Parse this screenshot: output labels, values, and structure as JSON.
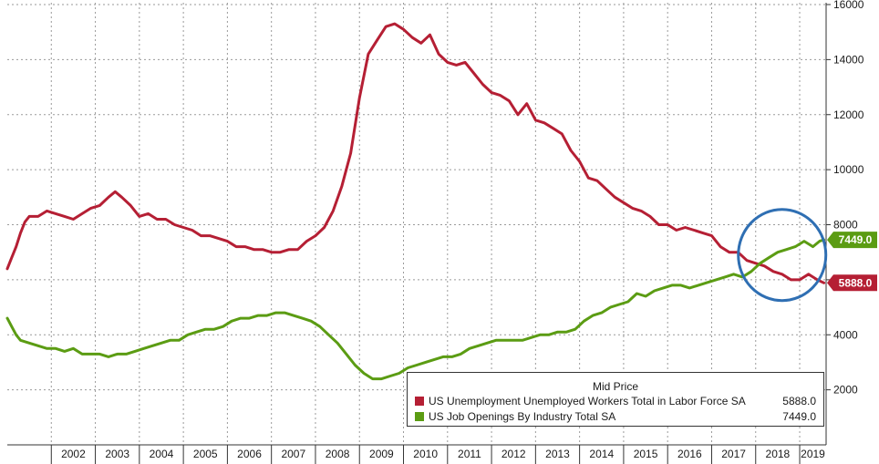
{
  "chart_data": {
    "type": "line",
    "legend_title": "Mid Price",
    "legend_position": "bottom-right",
    "x_labels": [
      "2002",
      "2003",
      "2004",
      "2005",
      "2006",
      "2007",
      "2008",
      "2009",
      "2010",
      "2011",
      "2012",
      "2013",
      "2014",
      "2015",
      "2016",
      "2017",
      "2018",
      "2019"
    ],
    "x_range": [
      2001.0,
      2019.6
    ],
    "ylim": [
      0,
      16000
    ],
    "y_ticks": [
      2000,
      4000,
      6000,
      8000,
      10000,
      12000,
      14000,
      16000
    ],
    "y_tick_labels": [
      "2000",
      "4000",
      "6000",
      "8000",
      "10000",
      "12000",
      "14000",
      "16000"
    ],
    "grid": true,
    "y_axis_side": "right",
    "annotation": "circle highlighting 2017-2019 crossover",
    "series": [
      {
        "name": "US Unemployment Unemployed Workers Total in Labor Force SA",
        "color": "#b51f34",
        "last_label": "5888.0",
        "last_value": 5888,
        "points": [
          [
            2001.0,
            6400
          ],
          [
            2001.1,
            6800
          ],
          [
            2001.2,
            7200
          ],
          [
            2001.3,
            7700
          ],
          [
            2001.4,
            8100
          ],
          [
            2001.5,
            8300
          ],
          [
            2001.7,
            8300
          ],
          [
            2001.9,
            8500
          ],
          [
            2002.1,
            8400
          ],
          [
            2002.3,
            8300
          ],
          [
            2002.5,
            8200
          ],
          [
            2002.7,
            8400
          ],
          [
            2002.9,
            8600
          ],
          [
            2003.1,
            8700
          ],
          [
            2003.3,
            9000
          ],
          [
            2003.45,
            9200
          ],
          [
            2003.6,
            9000
          ],
          [
            2003.8,
            8700
          ],
          [
            2004.0,
            8300
          ],
          [
            2004.2,
            8400
          ],
          [
            2004.4,
            8200
          ],
          [
            2004.6,
            8200
          ],
          [
            2004.8,
            8000
          ],
          [
            2005.0,
            7900
          ],
          [
            2005.2,
            7800
          ],
          [
            2005.4,
            7600
          ],
          [
            2005.6,
            7600
          ],
          [
            2005.8,
            7500
          ],
          [
            2006.0,
            7400
          ],
          [
            2006.2,
            7200
          ],
          [
            2006.4,
            7200
          ],
          [
            2006.6,
            7100
          ],
          [
            2006.8,
            7100
          ],
          [
            2007.0,
            7000
          ],
          [
            2007.2,
            7000
          ],
          [
            2007.4,
            7100
          ],
          [
            2007.6,
            7100
          ],
          [
            2007.8,
            7400
          ],
          [
            2008.0,
            7600
          ],
          [
            2008.2,
            7900
          ],
          [
            2008.4,
            8500
          ],
          [
            2008.6,
            9400
          ],
          [
            2008.8,
            10600
          ],
          [
            2009.0,
            12600
          ],
          [
            2009.2,
            14200
          ],
          [
            2009.4,
            14700
          ],
          [
            2009.6,
            15200
          ],
          [
            2009.8,
            15300
          ],
          [
            2010.0,
            15100
          ],
          [
            2010.2,
            14800
          ],
          [
            2010.4,
            14600
          ],
          [
            2010.6,
            14900
          ],
          [
            2010.8,
            14200
          ],
          [
            2011.0,
            13900
          ],
          [
            2011.2,
            13800
          ],
          [
            2011.4,
            13900
          ],
          [
            2011.6,
            13500
          ],
          [
            2011.8,
            13100
          ],
          [
            2012.0,
            12800
          ],
          [
            2012.2,
            12700
          ],
          [
            2012.4,
            12500
          ],
          [
            2012.6,
            12000
          ],
          [
            2012.8,
            12400
          ],
          [
            2013.0,
            11800
          ],
          [
            2013.2,
            11700
          ],
          [
            2013.4,
            11500
          ],
          [
            2013.6,
            11300
          ],
          [
            2013.8,
            10700
          ],
          [
            2014.0,
            10300
          ],
          [
            2014.2,
            9700
          ],
          [
            2014.4,
            9600
          ],
          [
            2014.6,
            9300
          ],
          [
            2014.8,
            9000
          ],
          [
            2015.0,
            8800
          ],
          [
            2015.2,
            8600
          ],
          [
            2015.4,
            8500
          ],
          [
            2015.6,
            8300
          ],
          [
            2015.8,
            8000
          ],
          [
            2016.0,
            8000
          ],
          [
            2016.2,
            7800
          ],
          [
            2016.4,
            7900
          ],
          [
            2016.6,
            7800
          ],
          [
            2016.8,
            7700
          ],
          [
            2017.0,
            7600
          ],
          [
            2017.2,
            7200
          ],
          [
            2017.4,
            7000
          ],
          [
            2017.6,
            7000
          ],
          [
            2017.8,
            6700
          ],
          [
            2018.0,
            6600
          ],
          [
            2018.2,
            6500
          ],
          [
            2018.4,
            6300
          ],
          [
            2018.6,
            6200
          ],
          [
            2018.8,
            6000
          ],
          [
            2019.0,
            6000
          ],
          [
            2019.2,
            6200
          ],
          [
            2019.4,
            6000
          ],
          [
            2019.55,
            5888
          ]
        ]
      },
      {
        "name": "US Job Openings By Industry Total SA",
        "color": "#5b9c13",
        "last_label": "7449.0",
        "last_value": 7449,
        "points": [
          [
            2001.0,
            4600
          ],
          [
            2001.1,
            4300
          ],
          [
            2001.2,
            4000
          ],
          [
            2001.3,
            3800
          ],
          [
            2001.5,
            3700
          ],
          [
            2001.7,
            3600
          ],
          [
            2001.9,
            3500
          ],
          [
            2002.1,
            3500
          ],
          [
            2002.3,
            3400
          ],
          [
            2002.5,
            3500
          ],
          [
            2002.7,
            3300
          ],
          [
            2002.9,
            3300
          ],
          [
            2003.1,
            3300
          ],
          [
            2003.3,
            3200
          ],
          [
            2003.5,
            3300
          ],
          [
            2003.7,
            3300
          ],
          [
            2003.9,
            3400
          ],
          [
            2004.1,
            3500
          ],
          [
            2004.3,
            3600
          ],
          [
            2004.5,
            3700
          ],
          [
            2004.7,
            3800
          ],
          [
            2004.9,
            3800
          ],
          [
            2005.1,
            4000
          ],
          [
            2005.3,
            4100
          ],
          [
            2005.5,
            4200
          ],
          [
            2005.7,
            4200
          ],
          [
            2005.9,
            4300
          ],
          [
            2006.1,
            4500
          ],
          [
            2006.3,
            4600
          ],
          [
            2006.5,
            4600
          ],
          [
            2006.7,
            4700
          ],
          [
            2006.9,
            4700
          ],
          [
            2007.1,
            4800
          ],
          [
            2007.3,
            4800
          ],
          [
            2007.5,
            4700
          ],
          [
            2007.7,
            4600
          ],
          [
            2007.9,
            4500
          ],
          [
            2008.1,
            4300
          ],
          [
            2008.3,
            4000
          ],
          [
            2008.5,
            3700
          ],
          [
            2008.7,
            3300
          ],
          [
            2008.9,
            2900
          ],
          [
            2009.1,
            2600
          ],
          [
            2009.3,
            2400
          ],
          [
            2009.5,
            2400
          ],
          [
            2009.7,
            2500
          ],
          [
            2009.9,
            2600
          ],
          [
            2010.1,
            2800
          ],
          [
            2010.3,
            2900
          ],
          [
            2010.5,
            3000
          ],
          [
            2010.7,
            3100
          ],
          [
            2010.9,
            3200
          ],
          [
            2011.1,
            3200
          ],
          [
            2011.3,
            3300
          ],
          [
            2011.5,
            3500
          ],
          [
            2011.7,
            3600
          ],
          [
            2011.9,
            3700
          ],
          [
            2012.1,
            3800
          ],
          [
            2012.3,
            3800
          ],
          [
            2012.5,
            3800
          ],
          [
            2012.7,
            3800
          ],
          [
            2012.9,
            3900
          ],
          [
            2013.1,
            4000
          ],
          [
            2013.3,
            4000
          ],
          [
            2013.5,
            4100
          ],
          [
            2013.7,
            4100
          ],
          [
            2013.9,
            4200
          ],
          [
            2014.1,
            4500
          ],
          [
            2014.3,
            4700
          ],
          [
            2014.5,
            4800
          ],
          [
            2014.7,
            5000
          ],
          [
            2014.9,
            5100
          ],
          [
            2015.1,
            5200
          ],
          [
            2015.3,
            5500
          ],
          [
            2015.5,
            5400
          ],
          [
            2015.7,
            5600
          ],
          [
            2015.9,
            5700
          ],
          [
            2016.1,
            5800
          ],
          [
            2016.3,
            5800
          ],
          [
            2016.5,
            5700
          ],
          [
            2016.7,
            5800
          ],
          [
            2016.9,
            5900
          ],
          [
            2017.1,
            6000
          ],
          [
            2017.3,
            6100
          ],
          [
            2017.5,
            6200
          ],
          [
            2017.7,
            6100
          ],
          [
            2017.9,
            6300
          ],
          [
            2018.1,
            6600
          ],
          [
            2018.3,
            6800
          ],
          [
            2018.5,
            7000
          ],
          [
            2018.7,
            7100
          ],
          [
            2018.9,
            7200
          ],
          [
            2019.1,
            7400
          ],
          [
            2019.3,
            7200
          ],
          [
            2019.45,
            7400
          ],
          [
            2019.55,
            7449
          ]
        ]
      }
    ]
  },
  "colors": {
    "grid": "#9a9a9a",
    "axis": "#333333",
    "highlight_circle": "#2f6fb3"
  }
}
